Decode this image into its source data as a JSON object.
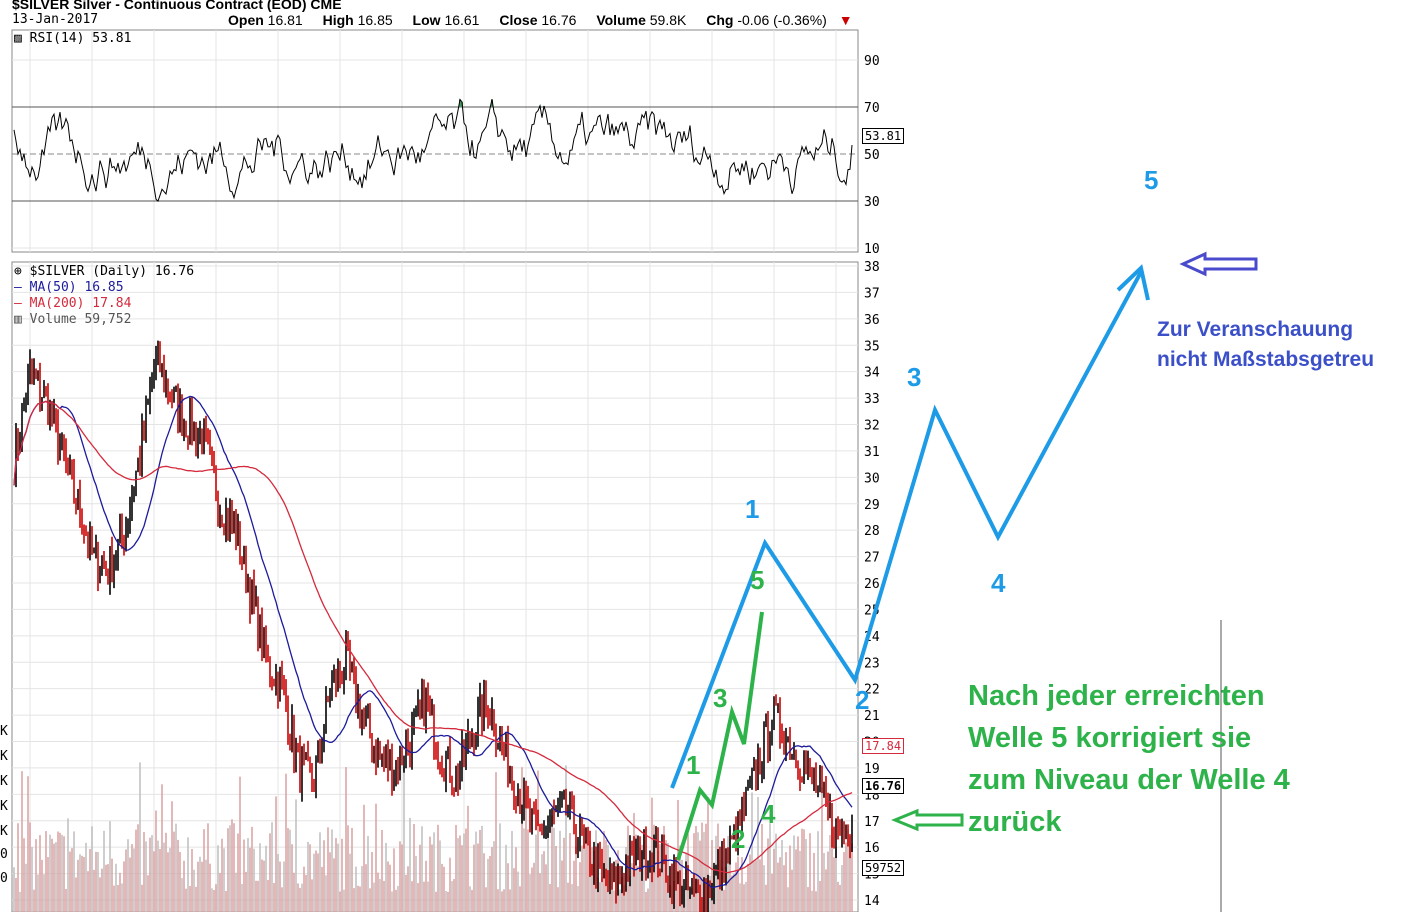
{
  "header": {
    "title": "$SILVER Silver - Continuous Contract (EOD) CME",
    "date": "13-Jan-2017",
    "open_label": "Open",
    "open": "16.81",
    "high_label": "High",
    "high": "16.85",
    "low_label": "Low",
    "low": "16.61",
    "close_label": "Close",
    "close": "16.76",
    "volume_label": "Volume",
    "volume": "59.8K",
    "chg_label": "Chg",
    "chg": "-0.06 (-0.36%)"
  },
  "rsi_panel": {
    "legend": "RSI(14) 53.81",
    "current_value": "53.81",
    "ticks": [
      "90",
      "70",
      "50",
      "30",
      "10"
    ],
    "overbought": 70,
    "oversold": 30
  },
  "price_panel": {
    "legend_main": "$SILVER (Daily) 16.76",
    "legend_ma50": "MA(50) 16.85",
    "legend_ma200": "MA(200) 17.84",
    "legend_volume": "Volume 59,752",
    "tag_ma200": "17.84",
    "tag_price": "16.76",
    "tag_volume": "59752",
    "ticks": [
      "38",
      "37",
      "36",
      "35",
      "34",
      "33",
      "32",
      "31",
      "30",
      "29",
      "28",
      "27",
      "26",
      "25",
      "24",
      "23",
      "22",
      "21",
      "20",
      "19",
      "18",
      "17",
      "16",
      "15",
      "14"
    ],
    "left_axis_labels": [
      "K",
      "K",
      "K",
      "K",
      "K",
      "0",
      "0"
    ]
  },
  "colors": {
    "price_up": "#000000",
    "price_down": "#cc0000",
    "ma50": "#1b1b9c",
    "ma200": "#d42a3c",
    "rsi_overbought": "#4a9a5e",
    "rsi_oversold": "#8c4a5a",
    "wave_blue": "#1e9be6",
    "wave_green": "#2db34a",
    "arrow_purple": "#4a4acc"
  },
  "annotations": {
    "blue_waves": [
      "1",
      "2",
      "3",
      "4",
      "5"
    ],
    "green_waves": [
      "1",
      "2",
      "3",
      "4",
      "5"
    ],
    "note_line1": "Zur Veranschauung",
    "note_line2": "nicht Maßstabsgetreu",
    "green_text": [
      "Nach jeder erreichten",
      "Welle 5 korrigiert sie",
      "zum Niveau der Welle 4",
      "zurück"
    ]
  },
  "chart_data": {
    "type": "line",
    "title": "$SILVER Silver - Continuous Contract (EOD) CME",
    "series": [
      {
        "name": "$SILVER (Daily)",
        "last": 16.76,
        "values": [
          30.5,
          34,
          33,
          31,
          29,
          27,
          26.5,
          28,
          31,
          34.5,
          33,
          32,
          31.5,
          29,
          28,
          25.5,
          23,
          22,
          19,
          18.5,
          22,
          23,
          21,
          19.5,
          19,
          20,
          21.5,
          19.5,
          18.5,
          20.5,
          21.5,
          19.5,
          18,
          16.5,
          17,
          17.5,
          16,
          15,
          14.5,
          15.5,
          16,
          15.5,
          14.5,
          14.2,
          14.5,
          15.5,
          17,
          19,
          21,
          20,
          19,
          18,
          16.5,
          16.76
        ]
      },
      {
        "name": "MA(50)",
        "last": 16.85
      },
      {
        "name": "MA(200)",
        "last": 17.84
      }
    ],
    "rsi": {
      "name": "RSI(14)",
      "last": 53.81
    },
    "volume": {
      "name": "Volume",
      "last": 59752
    },
    "ylim": [
      13.5,
      38.5
    ],
    "grid": true
  }
}
